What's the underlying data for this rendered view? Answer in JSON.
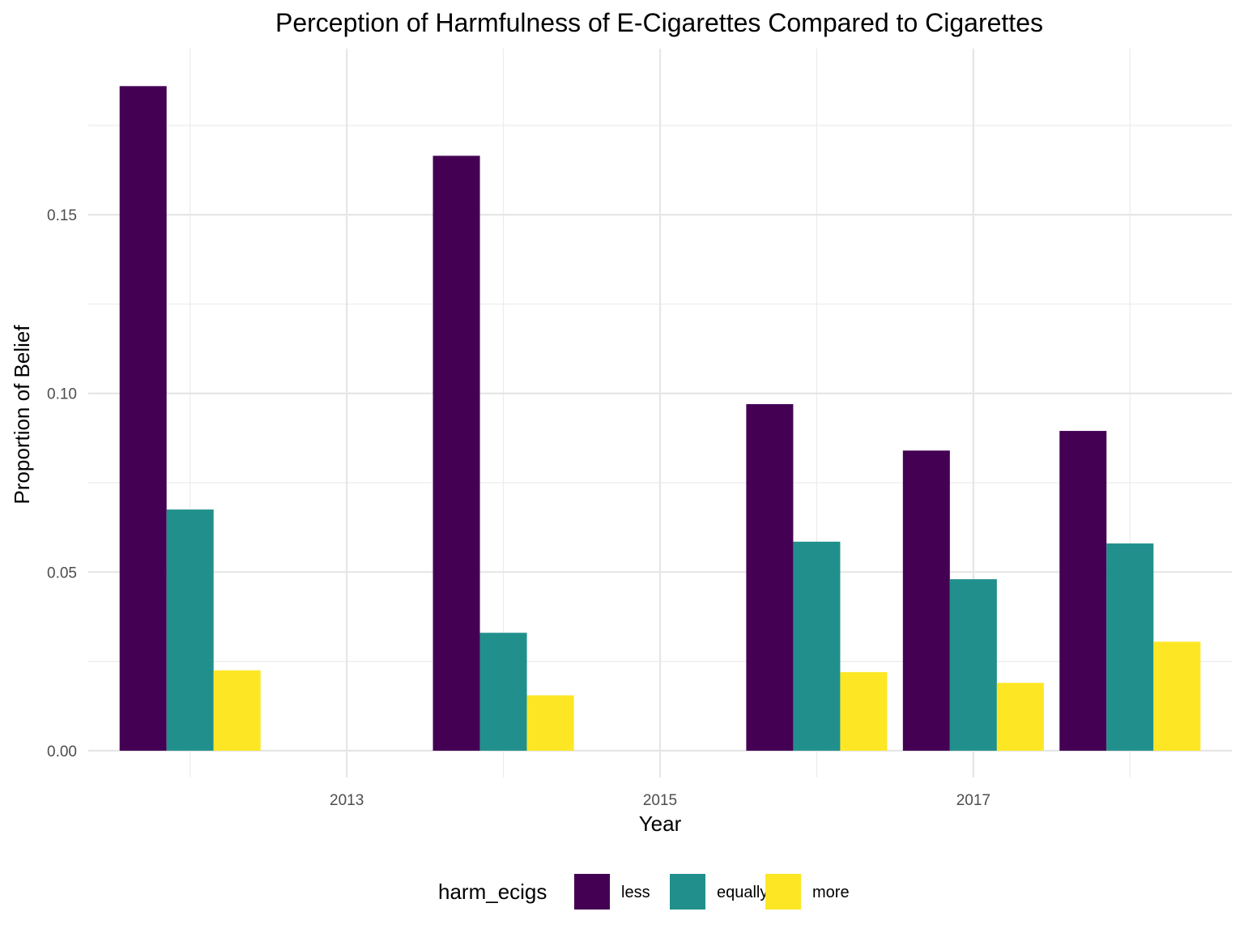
{
  "chart_data": {
    "type": "bar",
    "title": "Perception of Harmfulness of E-Cigarettes Compared to Cigarettes",
    "xlabel": "Year",
    "ylabel": "Proportion of Belief",
    "x": [
      2012,
      2014,
      2016,
      2017,
      2018
    ],
    "xlim": [
      2011.35,
      2018.65
    ],
    "xticks": [
      2013,
      2015,
      2017
    ],
    "xtick_labels": [
      "2013",
      "2015",
      "2017"
    ],
    "ylim": [
      -0.0075,
      0.1965
    ],
    "yticks": [
      0.0,
      0.05,
      0.1,
      0.15
    ],
    "ytick_labels": [
      "0.00",
      "0.05",
      "0.10",
      "0.15"
    ],
    "grid": true,
    "legend": {
      "title": "harm_ecigs",
      "position": "bottom"
    },
    "series": [
      {
        "name": "less",
        "color": "#440154",
        "values": [
          0.186,
          0.1665,
          0.097,
          0.084,
          0.0895
        ]
      },
      {
        "name": "equally",
        "color": "#21908C",
        "values": [
          0.0675,
          0.033,
          0.0585,
          0.048,
          0.058
        ]
      },
      {
        "name": "more",
        "color": "#FDE725",
        "values": [
          0.0225,
          0.0155,
          0.022,
          0.019,
          0.0305
        ]
      }
    ]
  }
}
